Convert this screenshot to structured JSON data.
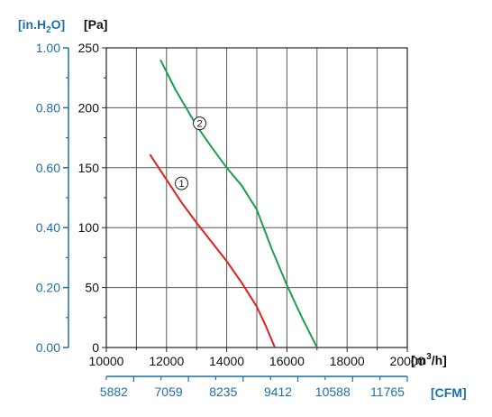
{
  "chart_data": {
    "type": "line",
    "title": "",
    "x_unit": "[m³/h]",
    "x_unit_parts": {
      "pre": "[m",
      "sup": "3",
      "post": "/h]"
    },
    "x_secondary_unit": "[CFM]",
    "y_unit": "[Pa]",
    "y_secondary_unit": "[in.H₂O]",
    "y_secondary_unit_parts": {
      "pre": "[in.H",
      "sub": "2",
      "post": "O]"
    },
    "xlim": [
      10000,
      20000
    ],
    "ylim": [
      0,
      250
    ],
    "x_ticks": [
      "10000",
      "12000",
      "14000",
      "16000",
      "18000",
      "20000"
    ],
    "x_secondary_ticks": [
      "5882",
      "7059",
      "8235",
      "9412",
      "10588",
      "11765"
    ],
    "y_ticks": [
      "0",
      "50",
      "100",
      "150",
      "200",
      "250"
    ],
    "y_secondary_ticks": [
      "0.00",
      "0.20",
      "0.40",
      "0.60",
      "0.80",
      "1.00"
    ],
    "grid": true,
    "series": [
      {
        "label": "①",
        "color": "#e0201f",
        "x": [
          11450,
          12000,
          12500,
          13000,
          13500,
          14000,
          14500,
          15000,
          15300,
          15600
        ],
        "y": [
          161,
          140,
          121,
          104,
          88,
          72,
          54,
          34,
          18,
          0
        ]
      },
      {
        "label": "②",
        "color": "#18a050",
        "x": [
          11800,
          12300,
          13000,
          13500,
          14000,
          14500,
          15000,
          15500,
          16000,
          16500,
          17000
        ],
        "y": [
          240,
          215,
          185,
          167,
          150,
          135,
          115,
          82,
          52,
          25,
          0
        ]
      }
    ]
  }
}
